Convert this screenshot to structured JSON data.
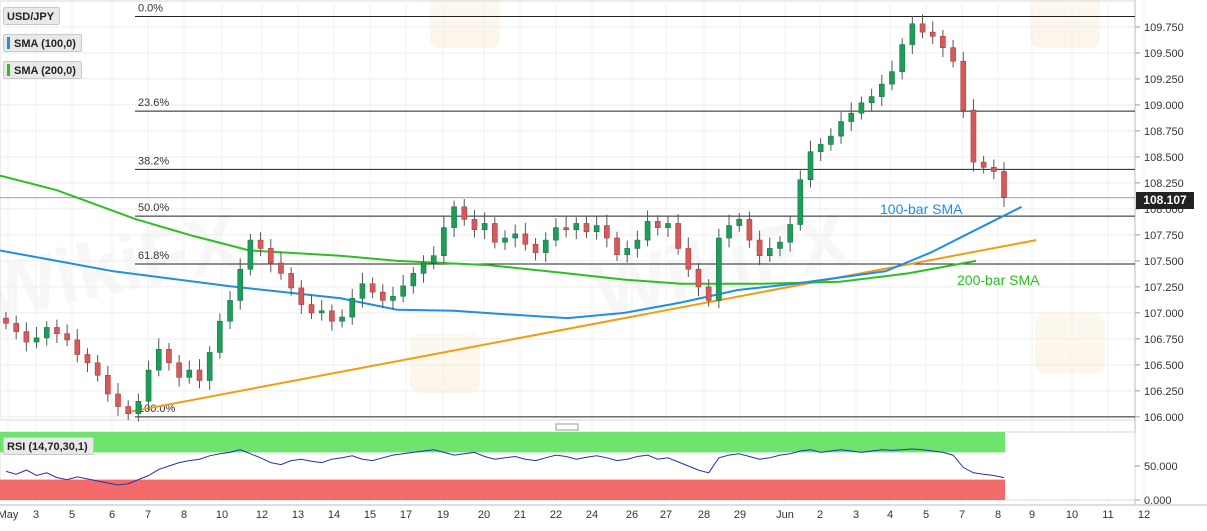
{
  "symbol": "USD/JPY",
  "indicators": {
    "sma100_label": "SMA (100,0)",
    "sma200_label": "SMA (200,0)",
    "rsi_label": "RSI (14,70,30,1)",
    "sma100_color": "#1f8fe0",
    "sma200_color": "#2bbf1f",
    "trend_color": "#f39c12"
  },
  "annotations": {
    "sma100": "100-bar SMA",
    "sma200": "200-bar SMA"
  },
  "last_price": "108.107",
  "chart_data": {
    "type": "candlestick",
    "x_labels": [
      "May",
      "3",
      "5",
      "6",
      "7",
      "8",
      "10",
      "12",
      "13",
      "14",
      "15",
      "17",
      "19",
      "20",
      "21",
      "22",
      "24",
      "26",
      "27",
      "28",
      "29",
      "Jun",
      "2",
      "3",
      "4",
      "5",
      "7",
      "8",
      "9",
      "10",
      "11",
      "12"
    ],
    "price_axis": {
      "ticks": [
        "109.750",
        "109.500",
        "109.250",
        "109.000",
        "108.750",
        "108.500",
        "108.250",
        "108.000",
        "107.750",
        "107.500",
        "107.250",
        "107.000",
        "106.750",
        "106.500",
        "106.250",
        "106.000"
      ],
      "ylim": [
        105.97,
        109.98
      ]
    },
    "fibonacci": [
      {
        "label": "0.0%",
        "price": 109.85
      },
      {
        "label": "23.6%",
        "price": 108.94
      },
      {
        "label": "38.2%",
        "price": 108.38
      },
      {
        "label": "50.0%",
        "price": 107.93
      },
      {
        "label": "61.8%",
        "price": 107.47
      },
      {
        "label": "100.0%",
        "price": 106.0
      }
    ],
    "close_path": [
      106.9,
      106.82,
      106.72,
      106.76,
      106.86,
      106.8,
      106.74,
      106.6,
      106.52,
      106.4,
      106.22,
      106.1,
      106.03,
      106.15,
      106.45,
      106.65,
      106.52,
      106.38,
      106.45,
      106.35,
      106.62,
      106.92,
      107.12,
      107.42,
      107.7,
      107.62,
      107.48,
      107.38,
      107.24,
      107.08,
      107.0,
      107.02,
      106.92,
      106.96,
      107.14,
      107.28,
      107.2,
      107.12,
      107.16,
      107.26,
      107.38,
      107.48,
      107.55,
      107.82,
      108.02,
      107.9,
      107.8,
      107.86,
      107.68,
      107.72,
      107.76,
      107.66,
      107.58,
      107.7,
      107.82,
      107.8,
      107.86,
      107.78,
      107.84,
      107.72,
      107.56,
      107.62,
      107.7,
      107.88,
      107.82,
      107.86,
      107.62,
      107.42,
      107.25,
      107.12,
      107.72,
      107.84,
      107.9,
      107.7,
      107.55,
      107.62,
      107.68,
      107.85,
      108.28,
      108.55,
      108.62,
      108.7,
      108.84,
      108.92,
      109.02,
      109.08,
      109.2,
      109.32,
      109.58,
      109.78,
      109.7,
      109.66,
      109.55,
      109.42,
      108.95,
      108.45,
      108.4,
      108.36,
      108.11
    ],
    "sma100": [
      [
        107.6,
        0
      ],
      [
        107.5,
        0.05
      ],
      [
        107.4,
        0.1
      ],
      [
        107.26,
        0.2
      ],
      [
        107.14,
        0.3
      ],
      [
        107.03,
        0.35
      ],
      [
        107.02,
        0.4
      ],
      [
        106.99,
        0.44
      ],
      [
        106.95,
        0.5
      ],
      [
        107.0,
        0.55
      ],
      [
        107.1,
        0.6
      ],
      [
        107.22,
        0.65
      ],
      [
        107.28,
        0.7
      ],
      [
        107.4,
        0.78
      ],
      [
        107.58,
        0.82
      ],
      [
        107.8,
        0.86
      ],
      [
        108.02,
        0.9
      ]
    ],
    "sma200": [
      [
        108.32,
        0
      ],
      [
        108.18,
        0.05
      ],
      [
        107.9,
        0.12
      ],
      [
        107.74,
        0.17
      ],
      [
        107.6,
        0.22
      ],
      [
        107.55,
        0.3
      ],
      [
        107.5,
        0.35
      ],
      [
        107.46,
        0.43
      ],
      [
        107.38,
        0.5
      ],
      [
        107.32,
        0.55
      ],
      [
        107.28,
        0.6
      ],
      [
        107.28,
        0.67
      ],
      [
        107.3,
        0.74
      ],
      [
        107.38,
        0.8
      ],
      [
        107.5,
        0.86
      ]
    ],
    "trendline": [
      [
        106.05,
        0.115
      ],
      [
        107.7,
        0.913
      ]
    ],
    "rsi": {
      "levels": [
        70,
        30
      ],
      "tick_labels": [
        "50.000",
        "0.000"
      ],
      "values": [
        42,
        38,
        44,
        36,
        40,
        33,
        30,
        34,
        31,
        28,
        25,
        22,
        24,
        30,
        36,
        45,
        50,
        55,
        58,
        60,
        65,
        68,
        70,
        74,
        68,
        62,
        55,
        52,
        58,
        60,
        57,
        55,
        60,
        62,
        65,
        60,
        58,
        62,
        66,
        68,
        70,
        72,
        74,
        70,
        66,
        68,
        70,
        64,
        60,
        62,
        64,
        60,
        58,
        62,
        66,
        64,
        60,
        63,
        65,
        62,
        58,
        60,
        64,
        66,
        60,
        62,
        56,
        50,
        44,
        40,
        62,
        66,
        68,
        64,
        60,
        62,
        66,
        68,
        72,
        74,
        70,
        72,
        74,
        72,
        70,
        72,
        74,
        73,
        74,
        75,
        74,
        72,
        70,
        66,
        48,
        40,
        38,
        36,
        33
      ]
    }
  }
}
